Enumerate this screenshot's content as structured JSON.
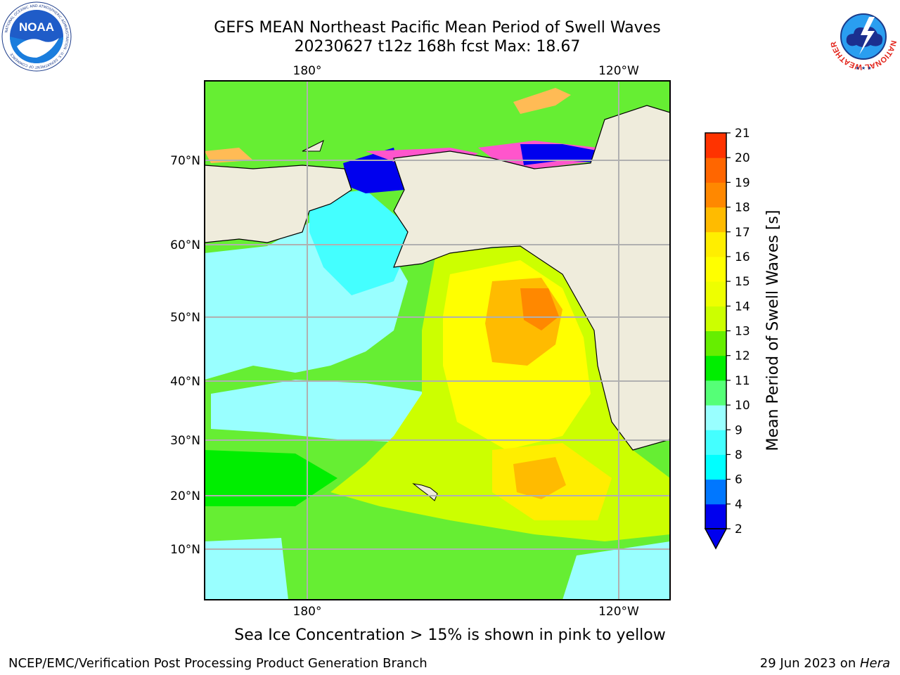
{
  "header": {
    "title_line1": "GEFS MEAN Northeast Pacific Mean Period of Swell Waves",
    "title_line2": "20230627 t12z 168h fcst   Max: 18.67"
  },
  "logos": {
    "noaa_text": "NOAA",
    "noaa_ring_text": "NATIONAL OCEANIC AND ATMOSPHERIC ADMINISTRATION · U.S. DEPARTMENT OF COMMERCE",
    "nws_ring_text": "NATIONAL WEATHER SERVICE"
  },
  "map": {
    "top_lon_labels": [
      "180°",
      "120°W"
    ],
    "bottom_lon_labels": [
      "180°",
      "120°W"
    ],
    "lat_labels": [
      "70°N",
      "60°N",
      "50°N",
      "40°N",
      "30°N",
      "20°N",
      "10°N"
    ],
    "colors": {
      "land": "#efecdc",
      "grid": "#b0b0b0",
      "coast": "#000000"
    }
  },
  "colorbar": {
    "label": "Mean Period of Swell Waves [s]",
    "tick_labels": [
      "2",
      "4",
      "6",
      "8",
      "9",
      "10",
      "11",
      "12",
      "13",
      "14",
      "15",
      "16",
      "17",
      "18",
      "19",
      "20",
      "21"
    ],
    "levels": [
      {
        "color": "#0000ee"
      },
      {
        "color": "#0077ff"
      },
      {
        "color": "#00ffff"
      },
      {
        "color": "#44ffff"
      },
      {
        "color": "#99ffff"
      },
      {
        "color": "#55ff77"
      },
      {
        "color": "#00ee00"
      },
      {
        "color": "#66ee00"
      },
      {
        "color": "#ccff00"
      },
      {
        "color": "#eeff00"
      },
      {
        "color": "#ffff00"
      },
      {
        "color": "#ffee00"
      },
      {
        "color": "#ffbb00"
      },
      {
        "color": "#ff8800"
      },
      {
        "color": "#ff6600"
      },
      {
        "color": "#ff3300"
      },
      {
        "color": "#ff0000"
      }
    ],
    "under_color": "#0000ee"
  },
  "footer": {
    "caption": "Sea Ice Concentration > 15% is shown in pink to yellow",
    "credit": "NCEP/EMC/Verification Post Processing Product Generation Branch",
    "date_text": "29 Jun 2023 on ",
    "machine": "Hera"
  }
}
